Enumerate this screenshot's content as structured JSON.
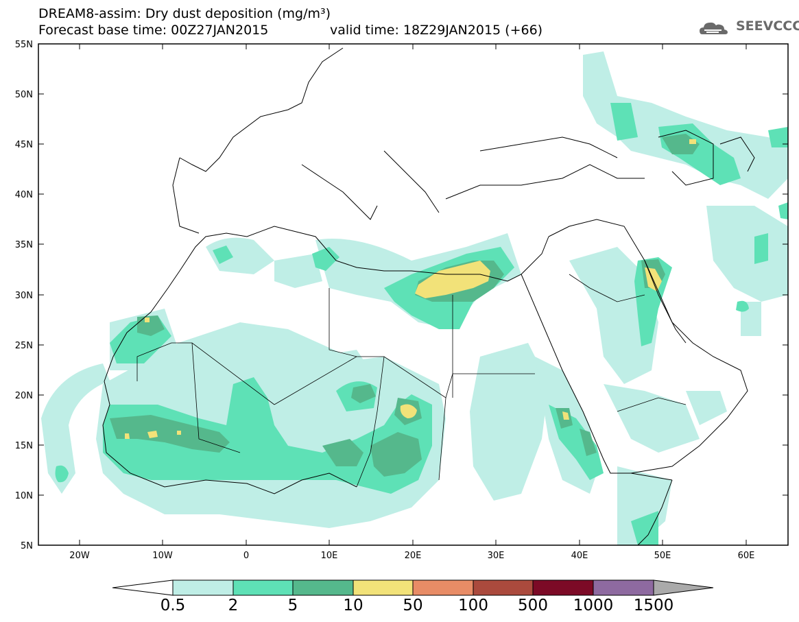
{
  "title": {
    "line1": "DREAM8-assim: Dry dust deposition (mg/m³)",
    "line2": "Forecast base time: 00Z27JAN2015",
    "line3": "valid time: 18Z29JAN2015 (+66)"
  },
  "logo": {
    "text": "SEEVCCC",
    "icon": "cloud-icon"
  },
  "map": {
    "lat_labels": [
      "55N",
      "50N",
      "45N",
      "40N",
      "35N",
      "30N",
      "25N",
      "20N",
      "15N",
      "10N",
      "5N"
    ],
    "lon_labels": [
      "20W",
      "10W",
      "0",
      "10E",
      "20E",
      "30E",
      "40E",
      "50E",
      "60E"
    ],
    "lon_range": [
      -25,
      65
    ],
    "lat_range": [
      5,
      55
    ]
  },
  "legend": {
    "labels": [
      "0.5",
      "2",
      "5",
      "10",
      "50",
      "100",
      "500",
      "1000",
      "1500"
    ],
    "colors": [
      "#ffffff",
      "#bfeee6",
      "#5ee1b6",
      "#55b88c",
      "#f2e279",
      "#e88c66",
      "#ab4a3d",
      "#7c0a26",
      "#8e6aa0",
      "#aaaaaa"
    ]
  }
}
